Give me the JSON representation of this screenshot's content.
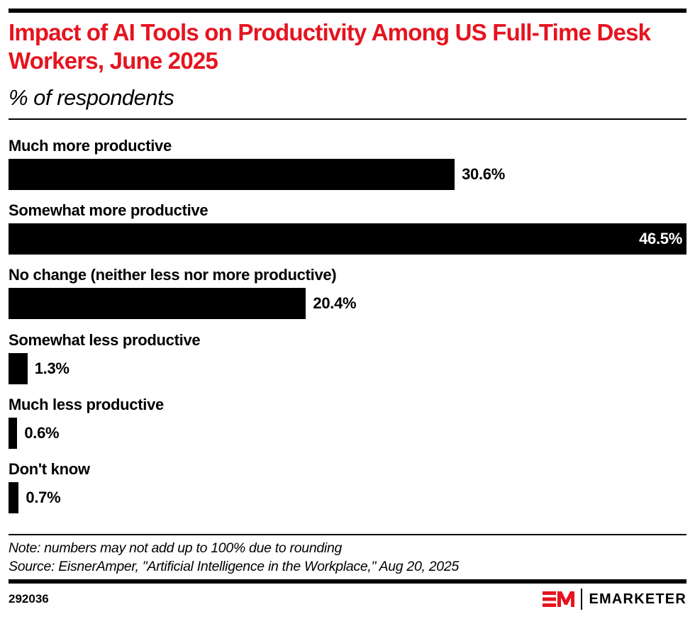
{
  "chart_data": {
    "type": "bar",
    "orientation": "horizontal",
    "title": "Impact of AI Tools on Productivity Among US Full-Time Desk Workers, June 2025",
    "subtitle": "% of respondents",
    "xlabel": "",
    "ylabel": "",
    "xlim": [
      0,
      46.5
    ],
    "grid": false,
    "categories": [
      "Much more productive",
      "Somewhat more productive",
      "No change (neither less nor more productive)",
      "Somewhat less productive",
      "Much less productive",
      "Don't know"
    ],
    "values": [
      30.6,
      46.5,
      20.4,
      1.3,
      0.6,
      0.7
    ],
    "data_labels": [
      "30.6%",
      "46.5%",
      "20.4%",
      "1.3%",
      "0.6%",
      "0.7%"
    ],
    "bar_color": "#000000"
  },
  "header": {
    "title": "Impact of AI Tools on Productivity Among US Full-Time Desk Workers, June 2025",
    "subtitle": "% of respondents",
    "title_color": "#e5141f"
  },
  "footer": {
    "note": "Note: numbers may not add up to 100% due to rounding",
    "source": "Source: EisnerAmper, \"Artificial Intelligence in the Workplace,\" Aug 20, 2025",
    "chart_id": "292036",
    "brand": "EMARKETER",
    "brand_color": "#e5141f"
  }
}
